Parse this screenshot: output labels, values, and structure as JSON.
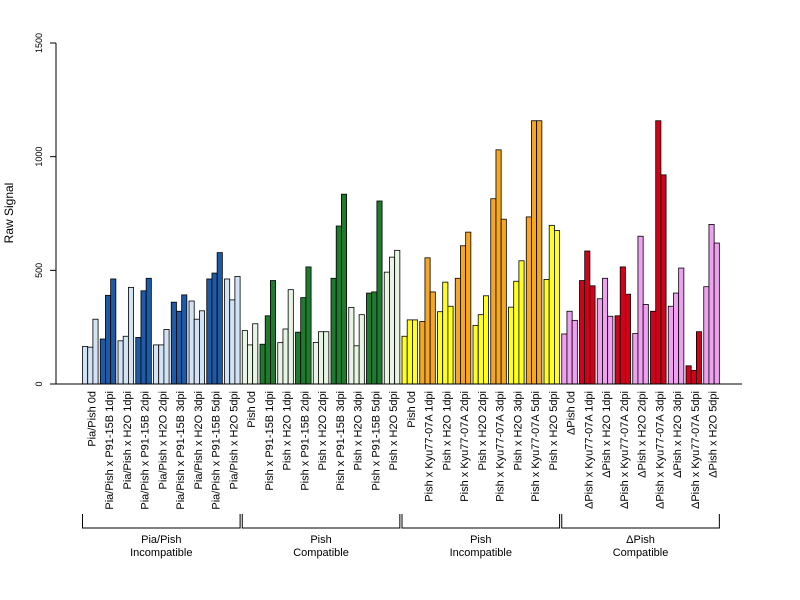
{
  "chart_data": {
    "type": "bar",
    "title": "",
    "ylabel": "Raw Signal",
    "xlabel": "",
    "ylim": [
      0,
      1500
    ],
    "yticks": [
      0,
      500,
      1000,
      1500
    ],
    "grid": false,
    "legend": "none",
    "categories": [
      "Pia/Pish 0d",
      "Pia/Pish x P91-15B 1dpi",
      "Pia/Pish x H2O 1dpi",
      "Pia/Pish x P91-15B 2dpi",
      "Pia/Pish x H2O 2dpi",
      "Pia/Pish x P91-15B 3dpi",
      "Pia/Pish x H2O 3dpi",
      "Pia/Pish x P91-15B 5dpi",
      "Pia/Pish x H2O 5dpi",
      "Pish 0d",
      "Pish x P91-15B 1dpi",
      "Pish x H2O 1dpi",
      "Pish x P91-15B 2dpi",
      "Pish x H2O 2dpi",
      "Pish x P91-15B 3dpi",
      "Pish x H2O 3dpi",
      "Pish x P91-15B 5dpi",
      "Pish x H2O 5dpi",
      "Pish 0d",
      "Pish x Kyu77-07A 1dpi",
      "Pish x H2O 1dpi",
      "Pish x Kyu77-07A 2dpi",
      "Pish x H2O 2dpi",
      "Pish x Kyu77-07A 3dpi",
      "Pish x H2O 3dpi",
      "Pish x Kyu77-07A 5dpi",
      "Pish x H2O 5dpi",
      "ΔPish 0d",
      "ΔPish x Kyu77-07A 1dpi",
      "ΔPish x H2O 1dpi",
      "ΔPish x Kyu77-07A 2dpi",
      "ΔPish x H2O 2dpi",
      "ΔPish x Kyu77-07A 3dpi",
      "ΔPish x H2O 3dpi",
      "ΔPish x Kyu77-07A 5dpi",
      "ΔPish x H2O 5dpi"
    ],
    "bar_colors": [
      "#d2e3f5",
      "#1f5aa6",
      "#d2e3f5",
      "#1f5aa6",
      "#d2e3f5",
      "#1f5aa6",
      "#d2e3f5",
      "#1f5aa6",
      "#d2e3f5",
      "#e8f5e4",
      "#1f7a2e",
      "#e8f5e4",
      "#1f7a2e",
      "#e8f5e4",
      "#1f7a2e",
      "#e8f5e4",
      "#1f7a2e",
      "#e8f5e4",
      "#ffff22",
      "#f5a623",
      "#ffff22",
      "#f5a623",
      "#ffff22",
      "#f5a623",
      "#ffff22",
      "#f5a623",
      "#ffff22",
      "#f0a0f0",
      "#d0021b",
      "#f0a0f0",
      "#d0021b",
      "#f0a0f0",
      "#d0021b",
      "#f0a0f0",
      "#d0021b",
      "#f0a0f0"
    ],
    "values": [
      [
        165,
        162,
        285
      ],
      [
        198,
        390,
        462
      ],
      [
        190,
        210,
        425
      ],
      [
        205,
        410,
        465
      ],
      [
        172,
        172,
        240
      ],
      [
        360,
        320,
        392
      ],
      [
        365,
        285,
        322
      ],
      [
        462,
        488,
        578
      ],
      [
        462,
        370,
        473
      ],
      [
        235,
        172,
        265
      ],
      [
        175,
        300,
        455
      ],
      [
        182,
        242,
        415
      ],
      [
        228,
        380,
        515
      ],
      [
        183,
        230,
        230
      ],
      [
        465,
        695,
        835
      ],
      [
        337,
        168,
        305
      ],
      [
        400,
        405,
        805
      ],
      [
        492,
        558,
        588
      ],
      [
        210,
        282,
        282
      ],
      [
        275,
        555,
        405
      ],
      [
        318,
        448,
        342
      ],
      [
        465,
        608,
        668
      ],
      [
        258,
        305,
        388
      ],
      [
        815,
        1030,
        725
      ],
      [
        338,
        452,
        542
      ],
      [
        735,
        1158,
        1158
      ],
      [
        460,
        698,
        675
      ],
      [
        220,
        320,
        280
      ],
      [
        455,
        585,
        432
      ],
      [
        375,
        465,
        298
      ],
      [
        300,
        515,
        395
      ],
      [
        222,
        650,
        350
      ],
      [
        320,
        1158,
        920
      ],
      [
        342,
        400,
        510
      ],
      [
        80,
        60,
        230
      ],
      [
        428,
        702,
        620
      ]
    ],
    "groups": [
      {
        "line1": "Pia/Pish",
        "line2": "Incompatible",
        "from": 0,
        "to": 8
      },
      {
        "line1": "Pish",
        "line2": "Compatible",
        "from": 9,
        "to": 17
      },
      {
        "line1": "Pish",
        "line2": "Incompatible",
        "from": 18,
        "to": 26
      },
      {
        "line1": "ΔPish",
        "line2": "Compatible",
        "from": 27,
        "to": 35
      }
    ]
  }
}
